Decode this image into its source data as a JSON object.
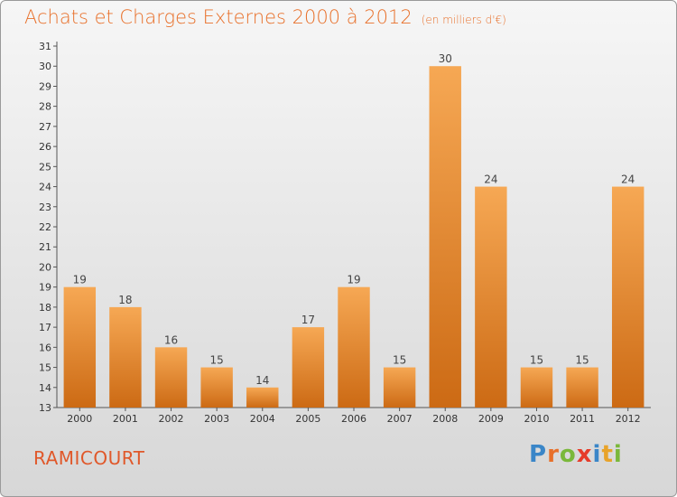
{
  "header": {
    "title": "Achats et Charges Externes 2000 à 2012",
    "subtitle": "(en milliers d'€)"
  },
  "town": "RAMICOURT",
  "logo": {
    "letters": [
      "P",
      "r",
      "o",
      "x",
      "i",
      "t",
      "i"
    ],
    "colors": [
      "#3a86c8",
      "#e8702a",
      "#7ab83a",
      "#e63c2a",
      "#3a86c8",
      "#e8a32a",
      "#7ab83a"
    ]
  },
  "colors": {
    "bar_top": "#f6a854",
    "bar_bottom": "#cc6a14",
    "title": "#e8702a"
  },
  "chart_data": {
    "type": "bar",
    "categories": [
      "2000",
      "2001",
      "2002",
      "2003",
      "2004",
      "2005",
      "2006",
      "2007",
      "2008",
      "2009",
      "2010",
      "2011",
      "2012"
    ],
    "values": [
      19,
      18,
      16,
      15,
      14,
      17,
      19,
      15,
      30,
      24,
      15,
      15,
      24
    ],
    "ylim": [
      13,
      31
    ],
    "yticks": [
      13,
      14,
      15,
      16,
      17,
      18,
      19,
      20,
      21,
      22,
      23,
      24,
      25,
      26,
      27,
      28,
      29,
      30,
      31
    ],
    "grid": false
  }
}
